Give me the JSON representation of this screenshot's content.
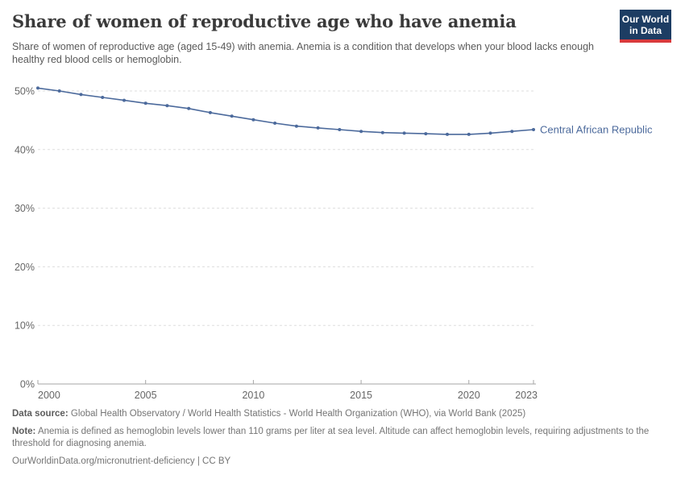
{
  "header": {
    "title": "Share of women of reproductive age who have anemia",
    "subtitle": "Share of women of reproductive age (aged 15-49) with anemia. Anemia is a condition that develops when your blood lacks enough healthy red blood cells or hemoglobin.",
    "logo": {
      "line1": "Our World",
      "line2": "in Data",
      "bg_color": "#1d3d63",
      "stripe_color": "#d93a3c",
      "text_color": "#ffffff"
    }
  },
  "chart_data": {
    "type": "line",
    "title": "Share of women of reproductive age who have anemia",
    "xlabel": "",
    "ylabel": "",
    "xlim": [
      2000,
      2023
    ],
    "ylim": [
      0,
      50
    ],
    "x_ticks": [
      2000,
      2005,
      2010,
      2015,
      2020,
      2023
    ],
    "y_ticks": [
      0,
      10,
      20,
      30,
      40,
      50
    ],
    "y_tick_suffix": "%",
    "grid": "horizontal-dashed",
    "legend_position": "end-of-line-label",
    "x": [
      2000,
      2001,
      2002,
      2003,
      2004,
      2005,
      2006,
      2007,
      2008,
      2009,
      2010,
      2011,
      2012,
      2013,
      2014,
      2015,
      2016,
      2017,
      2018,
      2019,
      2020,
      2021,
      2022,
      2023
    ],
    "series": [
      {
        "name": "Central African Republic",
        "color": "#4c6a9c",
        "values": [
          50.5,
          50.0,
          49.4,
          48.9,
          48.4,
          47.9,
          47.5,
          47.0,
          46.3,
          45.7,
          45.1,
          44.5,
          44.0,
          43.7,
          43.4,
          43.1,
          42.9,
          42.8,
          42.7,
          42.6,
          42.6,
          42.8,
          43.1,
          43.4
        ]
      }
    ]
  },
  "colors": {
    "grid": "#dddddd",
    "axis": "#a5a5a5",
    "tick_label": "#666666",
    "title": "#3a3a3a",
    "subtitle": "#5a5a5a",
    "footer": "#757575"
  },
  "footer": {
    "data_source_label": "Data source:",
    "data_source": "Global Health Observatory / World Health Statistics - World Health Organization (WHO), via World Bank (2025)",
    "note_label": "Note:",
    "note": "Anemia is defined as hemoglobin levels lower than 110 grams per liter at sea level. Altitude can affect hemoglobin levels, requiring adjustments to the threshold for diagnosing anemia.",
    "url": "OurWorldinData.org/micronutrient-deficiency | CC BY"
  }
}
